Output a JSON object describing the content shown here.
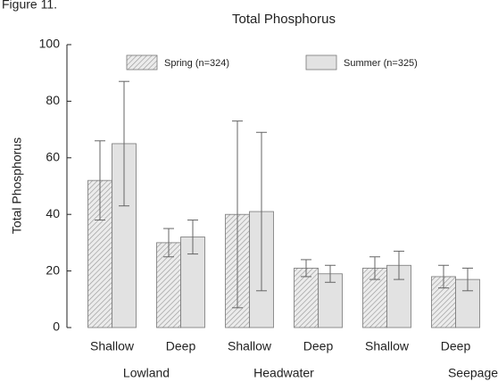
{
  "figure_label": "Figure 11.",
  "chart_data": {
    "type": "bar",
    "title": "Total Phosphorus",
    "y_label": "Total Phosphorus",
    "categories": [
      "Shallow",
      "Deep",
      "Shallow",
      "Deep",
      "Shallow",
      "Deep"
    ],
    "groups": [
      "Lowland",
      "Headwater",
      "Seepage"
    ],
    "series": [
      {
        "name": "Spring (n=324)",
        "color": "#d4d4d4",
        "hatch": true,
        "values": [
          52,
          30,
          40,
          21,
          21,
          18
        ],
        "errors": [
          14,
          5,
          33,
          3,
          4,
          4
        ]
      },
      {
        "name": "Summer (n=325)",
        "color": "#e2e2e2",
        "hatch": false,
        "values": [
          65,
          32,
          41,
          19,
          22,
          17
        ],
        "errors": [
          22,
          6,
          28,
          3,
          5,
          4
        ]
      }
    ],
    "ylim": [
      0,
      100
    ],
    "yticks": [
      0,
      20,
      40,
      60,
      80,
      100
    ],
    "grid": false,
    "legend": "top"
  }
}
